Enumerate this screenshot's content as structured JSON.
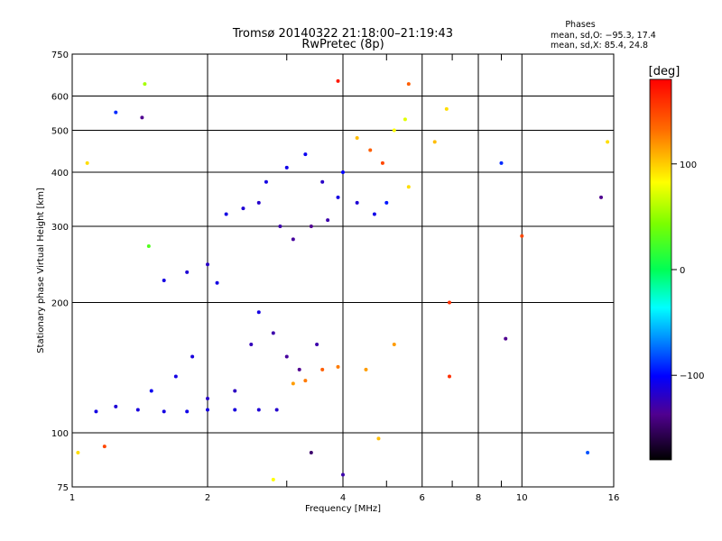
{
  "chart_data": {
    "type": "scatter",
    "title": "Tromsø 20140322 21:18:00–21:19:43",
    "subtitle": "RwPretec (8p)",
    "stats": {
      "heading": "Phases",
      "line_o": "mean, sd,O: −95.3, 17.4",
      "line_x": "mean, sd,X:  85.4, 24.8"
    },
    "xlabel": "Frequency [MHz]",
    "ylabel": "Stationary phase Virtual Height [km]",
    "x_scale": "log",
    "y_scale": "log",
    "xlim": [
      1,
      16
    ],
    "ylim": [
      75,
      750
    ],
    "x_ticks": [
      1,
      2,
      4,
      6,
      8,
      10,
      16
    ],
    "x_tick_labels": [
      "1",
      "2",
      "4",
      "6",
      "8",
      "10",
      "16"
    ],
    "x_minor": [
      3,
      5,
      7,
      9
    ],
    "y_ticks": [
      75,
      100,
      200,
      300,
      400,
      500,
      600,
      750
    ],
    "y_tick_labels": [
      "75",
      "100",
      "200",
      "300",
      "400",
      "500",
      "600",
      "750"
    ],
    "grid": true,
    "colorbar": {
      "label": "[deg]",
      "range": [
        -180,
        180
      ],
      "ticks": [
        100,
        0,
        -100
      ],
      "tick_labels": [
        "100",
        "0",
        "−100"
      ]
    },
    "series": [
      {
        "values": [
          {
            "f": 1.13,
            "h": 112,
            "p": -110
          },
          {
            "f": 1.25,
            "h": 115,
            "p": -115
          },
          {
            "f": 1.4,
            "h": 113,
            "p": -112
          },
          {
            "f": 1.6,
            "h": 112,
            "p": -110
          },
          {
            "f": 1.8,
            "h": 112,
            "p": -108
          },
          {
            "f": 2.0,
            "h": 113,
            "p": -110
          },
          {
            "f": 2.3,
            "h": 113,
            "p": -112
          },
          {
            "f": 2.6,
            "h": 113,
            "p": -115
          },
          {
            "f": 2.85,
            "h": 113,
            "p": -118
          },
          {
            "f": 1.5,
            "h": 125,
            "p": -105
          },
          {
            "f": 1.7,
            "h": 135,
            "p": -110
          },
          {
            "f": 1.85,
            "h": 150,
            "p": -112
          },
          {
            "f": 2.0,
            "h": 120,
            "p": -120
          },
          {
            "f": 2.3,
            "h": 125,
            "p": -122
          },
          {
            "f": 2.5,
            "h": 160,
            "p": -125
          },
          {
            "f": 2.6,
            "h": 190,
            "p": -110
          },
          {
            "f": 2.8,
            "h": 170,
            "p": -130
          },
          {
            "f": 3.0,
            "h": 150,
            "p": -135
          },
          {
            "f": 3.2,
            "h": 140,
            "p": -140
          },
          {
            "f": 3.5,
            "h": 160,
            "p": -130
          },
          {
            "f": 3.1,
            "h": 130,
            "p": 120
          },
          {
            "f": 3.3,
            "h": 132,
            "p": 130
          },
          {
            "f": 3.6,
            "h": 140,
            "p": 140
          },
          {
            "f": 3.9,
            "h": 142,
            "p": 130
          },
          {
            "f": 1.6,
            "h": 225,
            "p": -110
          },
          {
            "f": 1.8,
            "h": 235,
            "p": -115
          },
          {
            "f": 2.0,
            "h": 245,
            "p": -120
          },
          {
            "f": 2.1,
            "h": 222,
            "p": -110
          },
          {
            "f": 2.2,
            "h": 320,
            "p": -110
          },
          {
            "f": 2.4,
            "h": 330,
            "p": -115
          },
          {
            "f": 2.6,
            "h": 340,
            "p": -118
          },
          {
            "f": 2.9,
            "h": 300,
            "p": -130
          },
          {
            "f": 3.1,
            "h": 280,
            "p": -135
          },
          {
            "f": 3.4,
            "h": 300,
            "p": -140
          },
          {
            "f": 3.7,
            "h": 310,
            "p": -130
          },
          {
            "f": 2.7,
            "h": 380,
            "p": -110
          },
          {
            "f": 3.0,
            "h": 410,
            "p": -108
          },
          {
            "f": 3.3,
            "h": 440,
            "p": -105
          },
          {
            "f": 3.6,
            "h": 380,
            "p": -120
          },
          {
            "f": 3.9,
            "h": 350,
            "p": -110
          },
          {
            "f": 4.0,
            "h": 400,
            "p": -100
          },
          {
            "f": 4.3,
            "h": 340,
            "p": -115
          },
          {
            "f": 4.7,
            "h": 320,
            "p": -108
          },
          {
            "f": 5.0,
            "h": 340,
            "p": -95
          },
          {
            "f": 4.3,
            "h": 480,
            "p": 110
          },
          {
            "f": 4.6,
            "h": 450,
            "p": 140
          },
          {
            "f": 4.9,
            "h": 420,
            "p": 150
          },
          {
            "f": 5.2,
            "h": 500,
            "p": 90
          },
          {
            "f": 5.5,
            "h": 530,
            "p": 80
          },
          {
            "f": 5.6,
            "h": 370,
            "p": 100
          },
          {
            "f": 6.4,
            "h": 470,
            "p": 110
          },
          {
            "f": 6.8,
            "h": 560,
            "p": 100
          },
          {
            "f": 5.6,
            "h": 640,
            "p": 140
          },
          {
            "f": 1.45,
            "h": 640,
            "p": 60
          },
          {
            "f": 1.43,
            "h": 535,
            "p": -140
          },
          {
            "f": 1.25,
            "h": 550,
            "p": -90
          },
          {
            "f": 1.08,
            "h": 420,
            "p": 100
          },
          {
            "f": 1.03,
            "h": 90,
            "p": 100
          },
          {
            "f": 1.18,
            "h": 93,
            "p": 150
          },
          {
            "f": 1.48,
            "h": 270,
            "p": 30
          },
          {
            "f": 3.9,
            "h": 650,
            "p": 170
          },
          {
            "f": 4.0,
            "h": 80,
            "p": -130
          },
          {
            "f": 14.0,
            "h": 90,
            "p": -80
          },
          {
            "f": 15.0,
            "h": 350,
            "p": -140
          },
          {
            "f": 15.5,
            "h": 470,
            "p": 100
          },
          {
            "f": 9.0,
            "h": 420,
            "p": -90
          },
          {
            "f": 9.2,
            "h": 165,
            "p": -140
          },
          {
            "f": 10.0,
            "h": 285,
            "p": 150
          },
          {
            "f": 6.9,
            "h": 200,
            "p": 160
          },
          {
            "f": 6.9,
            "h": 135,
            "p": 160
          },
          {
            "f": 5.2,
            "h": 160,
            "p": 120
          },
          {
            "f": 4.5,
            "h": 140,
            "p": 120
          },
          {
            "f": 4.8,
            "h": 97,
            "p": 110
          },
          {
            "f": 3.4,
            "h": 90,
            "p": -150
          },
          {
            "f": 2.8,
            "h": 78,
            "p": 90
          }
        ]
      }
    ]
  }
}
